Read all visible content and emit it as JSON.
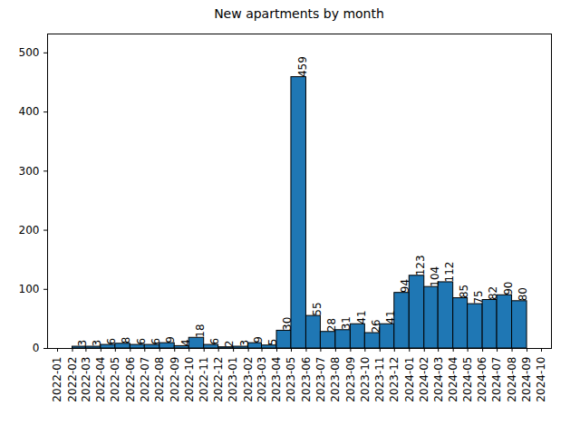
{
  "chart_data": {
    "type": "histogram",
    "title": "New apartments by month",
    "bins": [
      "2022-01",
      "2022-02",
      "2022-03",
      "2022-04",
      "2022-05",
      "2022-06",
      "2022-07",
      "2022-08",
      "2022-09",
      "2022-10",
      "2022-11",
      "2022-12",
      "2023-01",
      "2023-02",
      "2023-03",
      "2023-04",
      "2023-05",
      "2023-06",
      "2023-07",
      "2023-08",
      "2023-09",
      "2023-10",
      "2023-11",
      "2023-12",
      "2024-01",
      "2024-02",
      "2024-03",
      "2024-04",
      "2024-05",
      "2024-06",
      "2024-07",
      "2024-08",
      "2024-09",
      "2024-10"
    ],
    "values": [
      0,
      3,
      3,
      6,
      8,
      6,
      6,
      9,
      4,
      18,
      6,
      2,
      3,
      9,
      5,
      30,
      459,
      55,
      28,
      31,
      41,
      26,
      41,
      94,
      123,
      104,
      112,
      85,
      75,
      82,
      90,
      80,
      0
    ],
    "value_labels": [
      null,
      "3",
      "3",
      "6",
      "8",
      "6",
      "6",
      "9",
      "4",
      "18",
      "6",
      "2",
      "3",
      "9",
      "5",
      "30",
      "459",
      "55",
      "28",
      "31",
      "41",
      "26",
      "41",
      "94",
      "123",
      "104",
      "112",
      "85",
      "75",
      "82",
      "90",
      "80",
      null
    ],
    "color": "#1f77b4",
    "xlim": [
      "2022-01",
      "2024-10"
    ],
    "xticks": [
      "2022-01",
      "2022-02",
      "2022-03",
      "2022-04",
      "2022-05",
      "2022-06",
      "2022-07",
      "2022-08",
      "2022-09",
      "2022-10",
      "2022-11",
      "2022-12",
      "2023-01",
      "2023-02",
      "2023-03",
      "2023-04",
      "2023-05",
      "2023-06",
      "2023-07",
      "2023-08",
      "2023-09",
      "2023-10",
      "2023-11",
      "2023-12",
      "2024-01",
      "2024-02",
      "2024-03",
      "2024-04",
      "2024-05",
      "2024-06",
      "2024-07",
      "2024-08",
      "2024-09",
      "2024-10"
    ],
    "ylim": [
      0,
      532
    ],
    "yticks": [
      0,
      100,
      200,
      300,
      400,
      500
    ],
    "grid": false,
    "data_labels": true
  }
}
